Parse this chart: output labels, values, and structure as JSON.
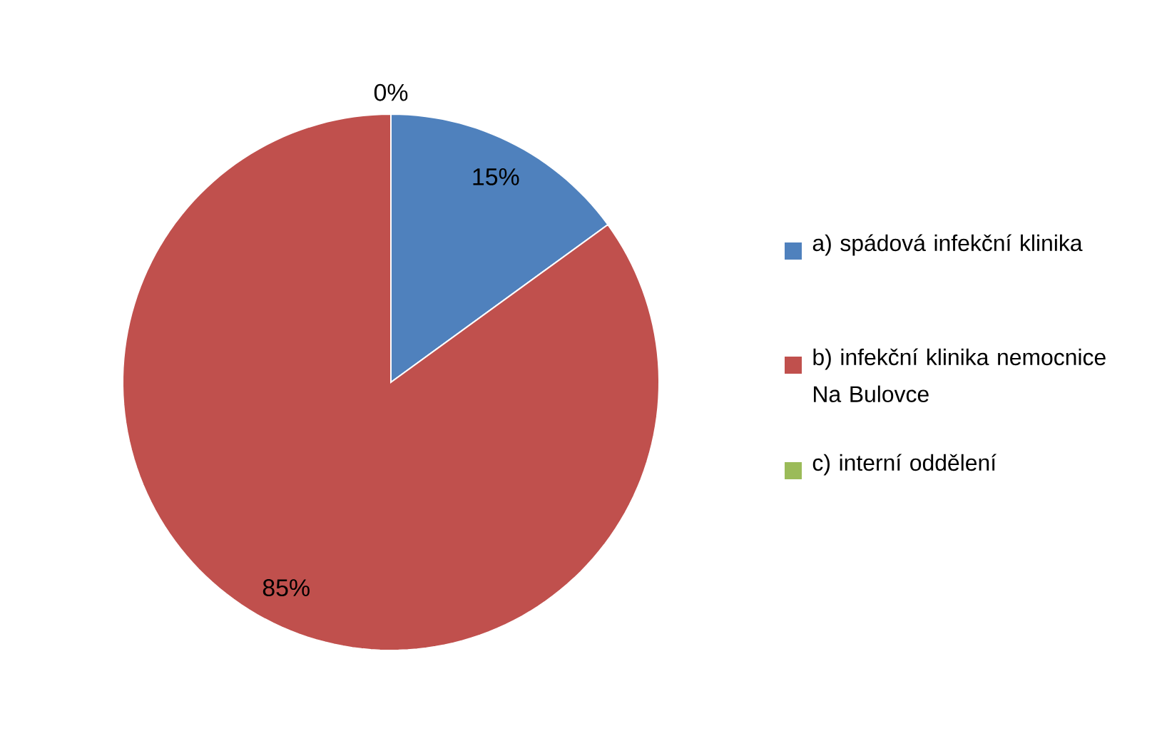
{
  "chart_data": {
    "type": "pie",
    "categories": [
      "a) spádová infekční klinika",
      "b) infekční klinika nemocnice Na Bulovce",
      "c) interní oddělení"
    ],
    "values": [
      15,
      85,
      0
    ],
    "colors": [
      "#4f81bd",
      "#c0504d",
      "#9bbb59"
    ],
    "value_labels": [
      "15%",
      "85%",
      "0%"
    ],
    "legend": "right"
  }
}
